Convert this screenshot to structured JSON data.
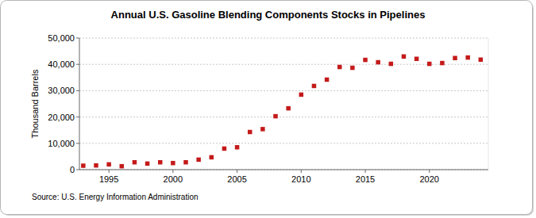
{
  "chart_data": {
    "type": "scatter",
    "title": "Annual U.S. Gasoline Blending Components Stocks in Pipelines",
    "y_label": "Thousand Barrels",
    "source": "Source: U.S. Energy Information Administration",
    "x": [
      1993,
      1994,
      1995,
      1996,
      1997,
      1998,
      1999,
      2000,
      2001,
      2002,
      2003,
      2004,
      2005,
      2006,
      2007,
      2008,
      2009,
      2010,
      2011,
      2012,
      2013,
      2014,
      2015,
      2016,
      2017,
      2018,
      2019,
      2020,
      2021,
      2022,
      2023,
      2024
    ],
    "values": [
      1500,
      1600,
      2000,
      1300,
      2800,
      2300,
      2800,
      2500,
      2800,
      3800,
      4700,
      8000,
      8500,
      14300,
      15400,
      20300,
      23300,
      28500,
      31800,
      34200,
      39000,
      38700,
      41700,
      40800,
      40200,
      43000,
      42100,
      40200,
      40500,
      42400,
      42600,
      41800
    ],
    "color": "#c41a1a",
    "marker": "square",
    "xlim": [
      1992.7,
      2024.6
    ],
    "xticks": [
      1995,
      2000,
      2005,
      2010,
      2015,
      2020
    ],
    "ylim": [
      0,
      50000
    ],
    "yticks": [
      0,
      {
        "value": 10000,
        "label": "10,000"
      },
      {
        "value": 20000,
        "label": "20,000"
      },
      {
        "value": 30000,
        "label": "30,000"
      },
      {
        "value": 40000,
        "label": "40,000"
      },
      {
        "value": 50000,
        "label": "50,000"
      }
    ],
    "grid": true
  }
}
